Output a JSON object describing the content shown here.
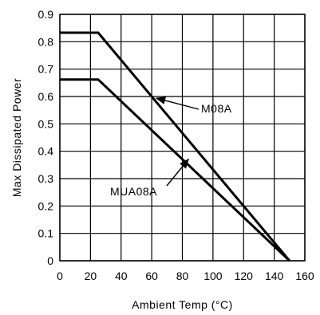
{
  "chart_data": {
    "type": "line",
    "title": "",
    "xlabel": "Ambient Temp (°C)",
    "ylabel": "Max Dissipated Power",
    "xlim": [
      0,
      160
    ],
    "ylim": [
      0,
      0.9
    ],
    "x_ticks": [
      "0",
      "20",
      "40",
      "60",
      "80",
      "100",
      "120",
      "140",
      "160"
    ],
    "y_ticks": [
      "0",
      "0.1",
      "0.2",
      "0.3",
      "0.4",
      "0.5",
      "0.6",
      "0.7",
      "0.8",
      "0.9"
    ],
    "grid": true,
    "series": [
      {
        "name": "M08A",
        "x": [
          0,
          25,
          150
        ],
        "y": [
          0.833,
          0.833,
          0
        ]
      },
      {
        "name": "MUA08A",
        "x": [
          0,
          25,
          150
        ],
        "y": [
          0.662,
          0.662,
          0
        ]
      }
    ],
    "annotations": [
      {
        "text": "M08A",
        "target_series": 0,
        "point": [
          63,
          0.594
        ]
      },
      {
        "text": "MUA08A",
        "target_series": 1,
        "point": [
          84,
          0.371
        ]
      }
    ]
  }
}
